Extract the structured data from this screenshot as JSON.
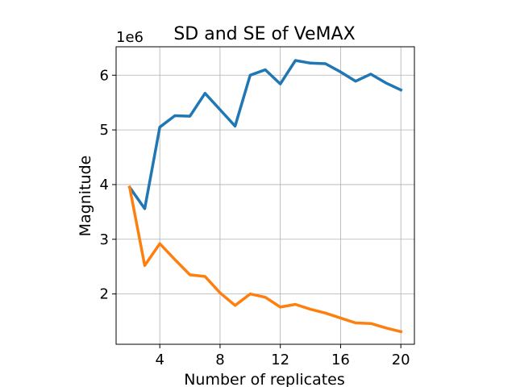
{
  "chart_data": {
    "type": "line",
    "title": "SD and SE of VeMAX",
    "xlabel": "Number of replicates",
    "ylabel": "Magnitude",
    "y_offset_label": "1e6",
    "y_multiplier": 1000000,
    "xlim": [
      1.1,
      20.9
    ],
    "ylim": [
      1.08,
      6.52
    ],
    "x_ticks": [
      4,
      8,
      12,
      16,
      20
    ],
    "y_ticks": [
      2,
      3,
      4,
      5,
      6
    ],
    "grid": true,
    "legend": "none",
    "x": [
      2,
      3,
      4,
      5,
      6,
      7,
      8,
      9,
      10,
      11,
      12,
      13,
      14,
      15,
      16,
      17,
      18,
      19,
      20
    ],
    "series": [
      {
        "color": "#1f77b4",
        "values": [
          3.95,
          3.56,
          5.05,
          5.26,
          5.25,
          5.67,
          5.37,
          5.07,
          6.0,
          6.1,
          5.84,
          6.27,
          6.22,
          6.21,
          6.06,
          5.89,
          6.02,
          5.86,
          5.73
        ]
      },
      {
        "color": "#ff7f0e",
        "values": [
          3.95,
          2.52,
          2.92,
          2.63,
          2.35,
          2.32,
          2.02,
          1.79,
          2.0,
          1.94,
          1.76,
          1.81,
          1.72,
          1.65,
          1.56,
          1.47,
          1.46,
          1.38,
          1.31
        ]
      }
    ]
  }
}
